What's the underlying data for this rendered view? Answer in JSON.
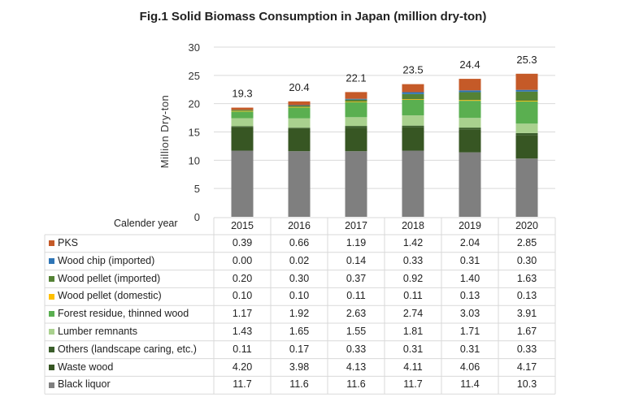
{
  "chart_data": {
    "type": "bar",
    "stacked": true,
    "title": "Fig.1 Solid Biomass Consumption in Japan (million dry-ton)",
    "ylabel": "Million Dry-ton",
    "xlabel": "Calender year",
    "ylim": [
      0,
      30
    ],
    "yticks": [
      0,
      5,
      10,
      15,
      20,
      25,
      30
    ],
    "grid": true,
    "categories": [
      "2015",
      "2016",
      "2017",
      "2018",
      "2019",
      "2020"
    ],
    "totals": [
      "19.3",
      "20.4",
      "22.1",
      "23.5",
      "24.4",
      "25.3"
    ],
    "series": [
      {
        "name": "PKS",
        "color": "#c55a28",
        "values": [
          "0.39",
          "0.66",
          "1.19",
          "1.42",
          "2.04",
          "2.85"
        ]
      },
      {
        "name": "Wood chip (imported)",
        "color": "#2e75b6",
        "values": [
          "0.00",
          "0.02",
          "0.14",
          "0.33",
          "0.31",
          "0.30"
        ]
      },
      {
        "name": "Wood pellet (imported)",
        "color": "#548235",
        "values": [
          "0.20",
          "0.30",
          "0.37",
          "0.92",
          "1.40",
          "1.63"
        ]
      },
      {
        "name": "Wood pellet (domestic)",
        "color": "#ffc000",
        "values": [
          "0.10",
          "0.10",
          "0.11",
          "0.11",
          "0.13",
          "0.13"
        ]
      },
      {
        "name": "Forest residue, thinned wood",
        "color": "#5aaf50",
        "values": [
          "1.17",
          "1.92",
          "2.63",
          "2.74",
          "3.03",
          "3.91"
        ]
      },
      {
        "name": "Lumber remnants",
        "color": "#a9d18e",
        "values": [
          "1.43",
          "1.65",
          "1.55",
          "1.81",
          "1.71",
          "1.67"
        ]
      },
      {
        "name": "Others (landscape caring, etc.)",
        "color": "#3b5e2b",
        "values": [
          "0.11",
          "0.17",
          "0.33",
          "0.31",
          "0.31",
          "0.33"
        ]
      },
      {
        "name": "Waste wood",
        "color": "#375623",
        "values": [
          "4.20",
          "3.98",
          "4.13",
          "4.11",
          "4.06",
          "4.17"
        ]
      },
      {
        "name": "Black liquor",
        "color": "#7f7f7f",
        "values": [
          "11.7",
          "11.6",
          "11.6",
          "11.7",
          "11.4",
          "10.3"
        ]
      }
    ]
  }
}
